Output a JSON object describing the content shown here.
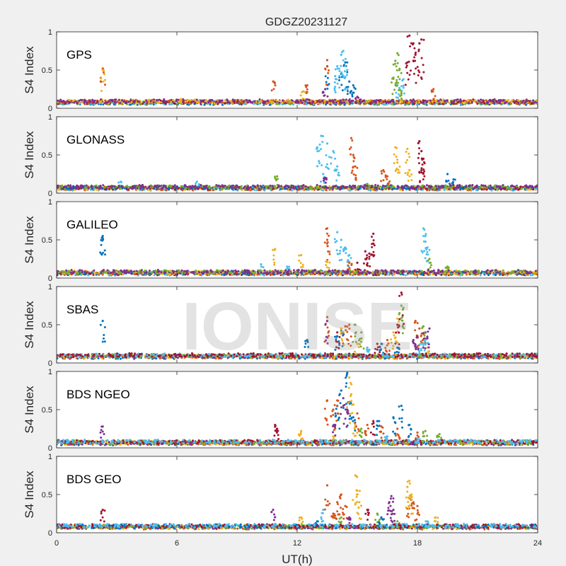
{
  "chart_data": {
    "type": "scatter",
    "title": "GDGZ20231127",
    "xlabel": "UT(h)",
    "ylabel": "S4 Index",
    "xlim": [
      0,
      24
    ],
    "ylim": [
      0,
      1
    ],
    "xticks": [
      "0",
      "6",
      "12",
      "18",
      "24"
    ],
    "yticks": [
      "0",
      "0.5",
      "1"
    ],
    "watermark": "IONISE",
    "panels": [
      {
        "name": "GPS",
        "baseline": 0.08,
        "series": [
          {
            "color": "#0072bd",
            "points": [
              [
                13.5,
                0.55
              ],
              [
                14.2,
                0.45
              ],
              [
                14.4,
                0.6
              ],
              [
                14.6,
                0.35
              ],
              [
                14.8,
                0.3
              ]
            ]
          },
          {
            "color": "#4dbeee",
            "points": [
              [
                13.9,
                0.42
              ],
              [
                14.0,
                0.55
              ],
              [
                14.2,
                0.7
              ],
              [
                14.3,
                0.75
              ],
              [
                14.5,
                0.5
              ],
              [
                17.0,
                0.3
              ],
              [
                17.3,
                0.38
              ]
            ]
          },
          {
            "color": "#77ac30",
            "points": [
              [
                16.8,
                0.4
              ],
              [
                16.9,
                0.62
              ],
              [
                17.0,
                0.72
              ],
              [
                17.1,
                0.5
              ],
              [
                17.2,
                0.2
              ]
            ]
          },
          {
            "color": "#a2142f",
            "points": [
              [
                17.6,
                0.95
              ],
              [
                17.8,
                0.85
              ],
              [
                17.9,
                0.7
              ],
              [
                18.1,
                0.85
              ],
              [
                18.2,
                0.9
              ],
              [
                17.5,
                0.6
              ]
            ]
          },
          {
            "color": "#d95319",
            "points": [
              [
                2.3,
                0.52
              ],
              [
                10.8,
                0.35
              ],
              [
                12.5,
                0.3
              ],
              [
                13.5,
                0.63
              ],
              [
                18.8,
                0.25
              ]
            ]
          },
          {
            "color": "#edb120",
            "points": [
              [
                2.3,
                0.5
              ],
              [
                6.2,
                0.12
              ],
              [
                12.3,
                0.22
              ]
            ]
          },
          {
            "color": "#7e2f8e",
            "points": [
              [
                13.4,
                0.25
              ],
              [
                15.0,
                0.15
              ]
            ]
          }
        ]
      },
      {
        "name": "GLONASS",
        "baseline": 0.07,
        "series": [
          {
            "color": "#4dbeee",
            "points": [
              [
                13.0,
                0.6
              ],
              [
                13.2,
                0.75
              ],
              [
                13.5,
                0.65
              ],
              [
                13.8,
                0.55
              ],
              [
                14.0,
                0.35
              ],
              [
                13.3,
                0.25
              ],
              [
                3.2,
                0.15
              ],
              [
                7.0,
                0.15
              ],
              [
                9.0,
                0.1
              ]
            ]
          },
          {
            "color": "#d95319",
            "points": [
              [
                14.7,
                0.72
              ],
              [
                14.8,
                0.5
              ],
              [
                14.9,
                0.35
              ],
              [
                16.3,
                0.3
              ],
              [
                16.5,
                0.22
              ]
            ]
          },
          {
            "color": "#edb120",
            "points": [
              [
                16.9,
                0.6
              ],
              [
                17.0,
                0.4
              ],
              [
                17.5,
                0.58
              ],
              [
                17.6,
                0.3
              ]
            ]
          },
          {
            "color": "#a2142f",
            "points": [
              [
                18.1,
                0.68
              ],
              [
                18.2,
                0.55
              ],
              [
                18.3,
                0.45
              ],
              [
                18.2,
                0.3
              ]
            ]
          },
          {
            "color": "#0072bd",
            "points": [
              [
                19.5,
                0.25
              ],
              [
                19.8,
                0.18
              ]
            ]
          },
          {
            "color": "#77ac30",
            "points": [
              [
                11.0,
                0.22
              ],
              [
                15.5,
                0.12
              ]
            ]
          },
          {
            "color": "#7e2f8e",
            "points": [
              [
                13.4,
                0.2
              ],
              [
                20.0,
                0.1
              ]
            ]
          }
        ]
      },
      {
        "name": "GALILEO",
        "baseline": 0.07,
        "series": [
          {
            "color": "#4dbeee",
            "points": [
              [
                14.0,
                0.6
              ],
              [
                14.2,
                0.5
              ],
              [
                14.4,
                0.4
              ],
              [
                14.6,
                0.3
              ],
              [
                10.2,
                0.18
              ],
              [
                11.5,
                0.15
              ],
              [
                18.3,
                0.65
              ],
              [
                18.4,
                0.55
              ],
              [
                18.5,
                0.4
              ]
            ]
          },
          {
            "color": "#a2142f",
            "points": [
              [
                15.4,
                0.35
              ],
              [
                15.6,
                0.32
              ],
              [
                15.8,
                0.58
              ],
              [
                15.8,
                0.45
              ],
              [
                15.0,
                0.2
              ]
            ]
          },
          {
            "color": "#d95319",
            "points": [
              [
                13.5,
                0.65
              ],
              [
                13.5,
                0.5
              ],
              [
                14.6,
                0.2
              ],
              [
                16.0,
                0.1
              ]
            ]
          },
          {
            "color": "#0072bd",
            "points": [
              [
                2.3,
                0.55
              ],
              [
                2.3,
                0.52
              ]
            ]
          },
          {
            "color": "#edb120",
            "points": [
              [
                10.9,
                0.38
              ],
              [
                12.2,
                0.3
              ],
              [
                13.5,
                0.22
              ]
            ]
          },
          {
            "color": "#77ac30",
            "points": [
              [
                18.6,
                0.25
              ],
              [
                19.5,
                0.15
              ]
            ]
          },
          {
            "color": "#7e2f8e",
            "points": [
              [
                3.5,
                0.1
              ],
              [
                9.5,
                0.1
              ]
            ]
          }
        ]
      },
      {
        "name": "SBAS",
        "baseline": 0.09,
        "series": [
          {
            "color": "#0072bd",
            "points": [
              [
                14.0,
                0.35
              ],
              [
                14.2,
                0.42
              ],
              [
                16.2,
                0.25
              ],
              [
                17.0,
                0.2
              ],
              [
                2.3,
                0.55
              ],
              [
                12.5,
                0.3
              ]
            ]
          },
          {
            "color": "#d95319",
            "points": [
              [
                14.4,
                0.48
              ],
              [
                14.6,
                0.5
              ],
              [
                16.5,
                0.3
              ],
              [
                17.9,
                0.55
              ],
              [
                18.1,
                0.45
              ],
              [
                18.3,
                0.38
              ],
              [
                13.5,
                0.6
              ]
            ]
          },
          {
            "color": "#edb120",
            "points": [
              [
                14.2,
                0.45
              ],
              [
                15.0,
                0.25
              ],
              [
                16.8,
                0.4
              ],
              [
                17.0,
                0.58
              ],
              [
                18.5,
                0.2
              ]
            ]
          },
          {
            "color": "#7e2f8e",
            "points": [
              [
                17.8,
                0.3
              ],
              [
                18.0,
                0.35
              ],
              [
                18.4,
                0.4
              ],
              [
                18.6,
                0.45
              ],
              [
                13.5,
                0.55
              ]
            ]
          },
          {
            "color": "#77ac30",
            "points": [
              [
                14.9,
                0.5
              ],
              [
                15.2,
                0.4
              ],
              [
                17.2,
                0.75
              ],
              [
                17.3,
                0.72
              ],
              [
                18.3,
                0.48
              ]
            ]
          },
          {
            "color": "#4dbeee",
            "points": [
              [
                15.5,
                0.2
              ],
              [
                18.2,
                0.25
              ],
              [
                18.4,
                0.3
              ]
            ]
          },
          {
            "color": "#a2142f",
            "points": [
              [
                14.0,
                0.4
              ],
              [
                16.0,
                0.25
              ],
              [
                17.2,
                0.92
              ],
              [
                17.0,
                0.5
              ]
            ]
          }
        ]
      },
      {
        "name": "BDS NGEO",
        "baseline": 0.07,
        "series": [
          {
            "color": "#0072bd",
            "points": [
              [
                14.0,
                0.55
              ],
              [
                14.2,
                0.75
              ],
              [
                14.5,
                0.98
              ],
              [
                14.6,
                0.6
              ],
              [
                14.8,
                0.4
              ],
              [
                16.0,
                0.35
              ],
              [
                16.8,
                0.4
              ],
              [
                17.2,
                0.55
              ],
              [
                17.6,
                0.3
              ]
            ]
          },
          {
            "color": "#d95319",
            "points": [
              [
                13.8,
                0.5
              ],
              [
                14.0,
                0.62
              ],
              [
                15.0,
                0.45
              ],
              [
                15.5,
                0.3
              ],
              [
                16.2,
                0.28
              ],
              [
                17.0,
                0.25
              ],
              [
                18.0,
                0.2
              ],
              [
                13.5,
                0.62
              ]
            ]
          },
          {
            "color": "#edb120",
            "points": [
              [
                14.6,
                0.92
              ],
              [
                14.7,
                0.7
              ],
              [
                14.9,
                0.3
              ],
              [
                13.8,
                0.15
              ],
              [
                12.2,
                0.22
              ]
            ]
          },
          {
            "color": "#7e2f8e",
            "points": [
              [
                14.3,
                0.65
              ],
              [
                14.5,
                0.5
              ],
              [
                13.9,
                0.3
              ],
              [
                2.3,
                0.28
              ]
            ]
          },
          {
            "color": "#77ac30",
            "points": [
              [
                15.2,
                0.25
              ],
              [
                18.4,
                0.22
              ],
              [
                19.1,
                0.18
              ]
            ]
          },
          {
            "color": "#a2142f",
            "points": [
              [
                10.9,
                0.3
              ],
              [
                11.0,
                0.25
              ],
              [
                15.8,
                0.35
              ]
            ]
          },
          {
            "color": "#4dbeee",
            "points": [
              [
                16.5,
                0.15
              ],
              [
                18.0,
                0.12
              ]
            ]
          }
        ]
      },
      {
        "name": "BDS GEO",
        "baseline": 0.08,
        "series": [
          {
            "color": "#d95319",
            "points": [
              [
                13.5,
                0.62
              ],
              [
                13.8,
                0.25
              ],
              [
                14.0,
                0.4
              ],
              [
                14.2,
                0.5
              ],
              [
                14.4,
                0.35
              ],
              [
                17.6,
                0.45
              ],
              [
                17.8,
                0.4
              ],
              [
                18.0,
                0.35
              ]
            ]
          },
          {
            "color": "#edb120",
            "points": [
              [
                14.9,
                0.75
              ],
              [
                15.0,
                0.55
              ],
              [
                15.1,
                0.4
              ],
              [
                17.5,
                0.6
              ],
              [
                17.6,
                0.68
              ],
              [
                17.7,
                0.5
              ],
              [
                12.2,
                0.2
              ],
              [
                18.9,
                0.2
              ]
            ]
          },
          {
            "color": "#7e2f8e",
            "points": [
              [
                16.6,
                0.4
              ],
              [
                16.7,
                0.48
              ],
              [
                16.8,
                0.3
              ],
              [
                10.8,
                0.3
              ],
              [
                14.6,
                0.2
              ]
            ]
          },
          {
            "color": "#77ac30",
            "points": [
              [
                14.2,
                0.2
              ],
              [
                16.0,
                0.25
              ],
              [
                17.0,
                0.15
              ]
            ]
          },
          {
            "color": "#0072bd",
            "points": [
              [
                16.2,
                0.2
              ],
              [
                13.0,
                0.15
              ]
            ]
          },
          {
            "color": "#a2142f",
            "points": [
              [
                2.3,
                0.3
              ],
              [
                15.5,
                0.3
              ]
            ]
          },
          {
            "color": "#4dbeee",
            "points": [
              [
                13.3,
                0.3
              ],
              [
                18.5,
                0.15
              ]
            ]
          }
        ]
      }
    ]
  }
}
